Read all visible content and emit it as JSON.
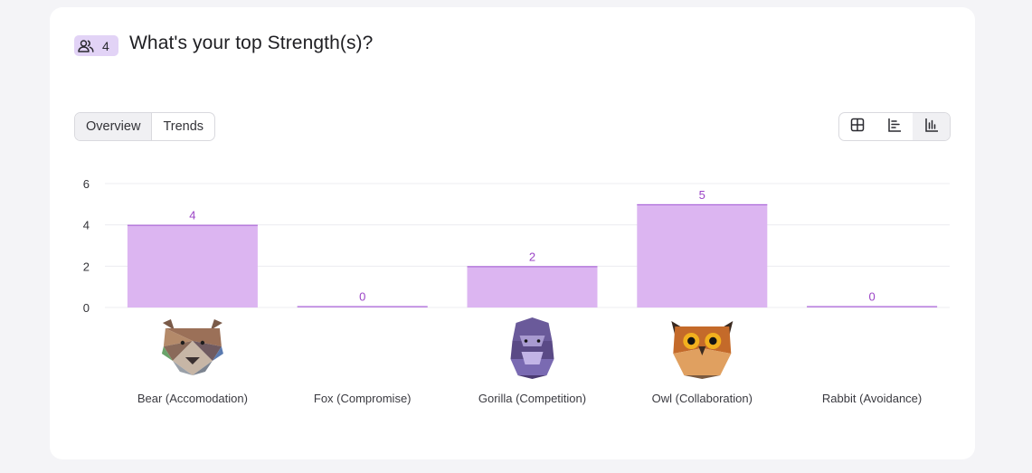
{
  "question": {
    "badge_icon": "people-icon",
    "number": "4",
    "title": "What's your top Strength(s)?"
  },
  "tabs": [
    {
      "label": "Overview",
      "active": true
    },
    {
      "label": "Trends",
      "active": false
    }
  ],
  "view_toggle": [
    {
      "name": "table-view-icon",
      "active": false
    },
    {
      "name": "horizontal-bar-view-icon",
      "active": false
    },
    {
      "name": "vertical-bar-view-icon",
      "active": true
    }
  ],
  "colors": {
    "bar_fill": "#dcb5f1",
    "bar_stroke": "#a25ad4",
    "value_label": "#9b44c6",
    "grid": "#ececf0"
  },
  "chart_data": {
    "type": "bar",
    "categories": [
      "Bear (Accomodation)",
      "Fox (Compromise)",
      "Gorilla (Competition)",
      "Owl (Collaboration)",
      "Rabbit (Avoidance)"
    ],
    "category_icons": [
      "bear-icon",
      "",
      "gorilla-icon",
      "owl-icon",
      ""
    ],
    "values": [
      4,
      0,
      2,
      5,
      0
    ],
    "yticks": [
      0,
      2,
      4,
      6
    ],
    "ylim": [
      0,
      6
    ],
    "grid": true,
    "title": "",
    "xlabel": "",
    "ylabel": ""
  }
}
